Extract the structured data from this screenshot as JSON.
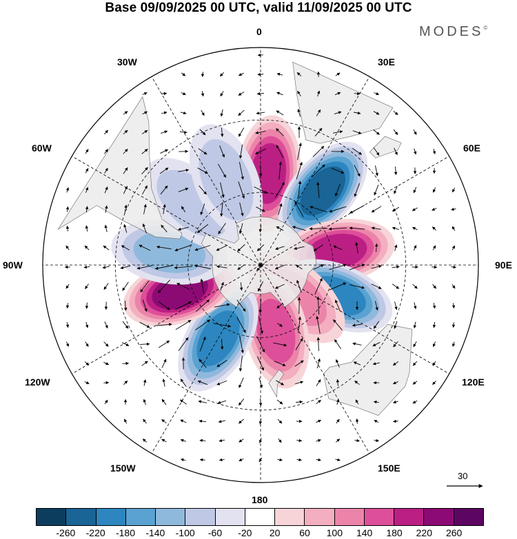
{
  "title": "Base 09/09/2025 00 UTC, valid 11/09/2025 00 UTC",
  "brand": "MODES",
  "brand_mark": "©",
  "longitude_labels": {
    "n0": "0",
    "e30": "30E",
    "e60": "60E",
    "e90": "90E",
    "e120": "120E",
    "e150": "150E",
    "s180": "180",
    "w150": "150W",
    "w120": "120W",
    "w90": "90W",
    "w60": "60W",
    "w30": "30W"
  },
  "reference_vector": {
    "value": "30"
  },
  "colorbar": {
    "ticks": [
      "-260",
      "-220",
      "-180",
      "-140",
      "-100",
      "-60",
      "-20",
      "20",
      "60",
      "100",
      "140",
      "180",
      "220",
      "260"
    ],
    "colors": [
      "#0d3d5e",
      "#1a6496",
      "#2d86bf",
      "#5aa2d1",
      "#8fb9dc",
      "#bfc8e4",
      "#e2e2f0",
      "#ffffff",
      "#f7d4d8",
      "#f3aec0",
      "#ec84aa",
      "#dd4f99",
      "#bb1f84",
      "#8c0a74",
      "#5c0561"
    ]
  },
  "map_colors": {
    "land": "#ebebeb",
    "coast": "#777777",
    "grid": "#000000"
  },
  "anomaly_centers": [
    {
      "id": "pos-0",
      "lat": -52,
      "lon": 5,
      "value": 200
    },
    {
      "id": "neg-30e",
      "lat": -50,
      "lon": 40,
      "value": -230
    },
    {
      "id": "pos-75e",
      "lat": -58,
      "lon": 80,
      "value": 180
    },
    {
      "id": "neg-105e",
      "lat": -56,
      "lon": 112,
      "value": -200
    },
    {
      "id": "pos-135e",
      "lat": -70,
      "lon": 132,
      "value": 100
    },
    {
      "id": "pos-165e",
      "lat": -62,
      "lon": 167,
      "value": 140
    },
    {
      "id": "neg-150w",
      "lat": -55,
      "lon": -150,
      "value": -200
    },
    {
      "id": "pos-110w",
      "lat": -55,
      "lon": -108,
      "value": 250
    },
    {
      "id": "neg-85w",
      "lat": -52,
      "lon": -82,
      "value": -120
    },
    {
      "id": "neg-45w",
      "lat": -52,
      "lon": -48,
      "value": -80
    },
    {
      "id": "neg-20w",
      "lat": -52,
      "lon": -22,
      "value": -60
    }
  ]
}
